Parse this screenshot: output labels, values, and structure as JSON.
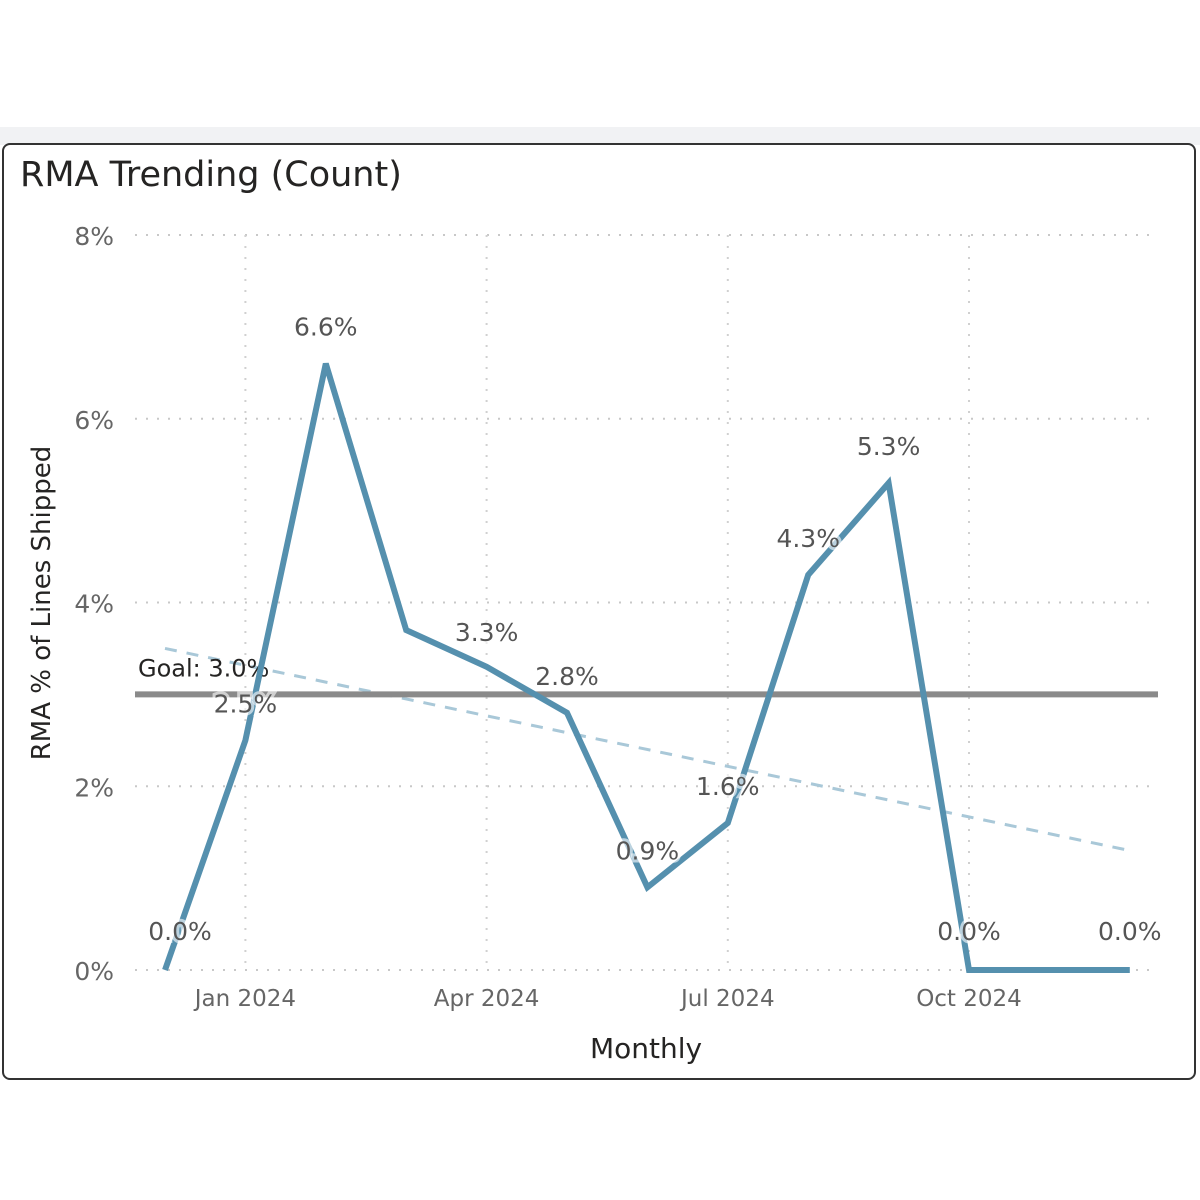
{
  "chart_data": {
    "type": "line",
    "title": "RMA Trending (Count)",
    "xlabel": "Monthly",
    "ylabel": "RMA % of Lines Shipped",
    "ylim": [
      0,
      8
    ],
    "y_ticks": [
      "0%",
      "2%",
      "4%",
      "6%",
      "8%"
    ],
    "x_ticks": [
      "Jan 2024",
      "Apr 2024",
      "Jul 2024",
      "Oct 2024"
    ],
    "x": [
      "Dec 2023",
      "Jan 2024",
      "Feb 2024",
      "Mar 2024",
      "Apr 2024",
      "May 2024",
      "Jun 2024",
      "Jul 2024",
      "Aug 2024",
      "Sep 2024",
      "Oct 2024",
      "Nov 2024",
      "Dec 2024"
    ],
    "series": [
      {
        "values": [
          0.0,
          2.5,
          6.6,
          3.7,
          3.3,
          2.8,
          0.9,
          1.6,
          4.3,
          5.3,
          0.0,
          0.0,
          0.0
        ],
        "data_labels": [
          "0.0%",
          "2.5%",
          "6.6%",
          "",
          "3.3%",
          "2.8%",
          "0.9%",
          "1.6%",
          "4.3%",
          "5.3%",
          "0.0%",
          "",
          "0.0%"
        ],
        "color": "#5590ae"
      }
    ],
    "goal": {
      "label": "Goal: 3.0%",
      "value": 3.0,
      "color": "#8a8a8a"
    },
    "trend": {
      "start": 3.5,
      "end": 1.3,
      "style": "dashed",
      "color": "#a9c8d8"
    },
    "grid": true
  }
}
